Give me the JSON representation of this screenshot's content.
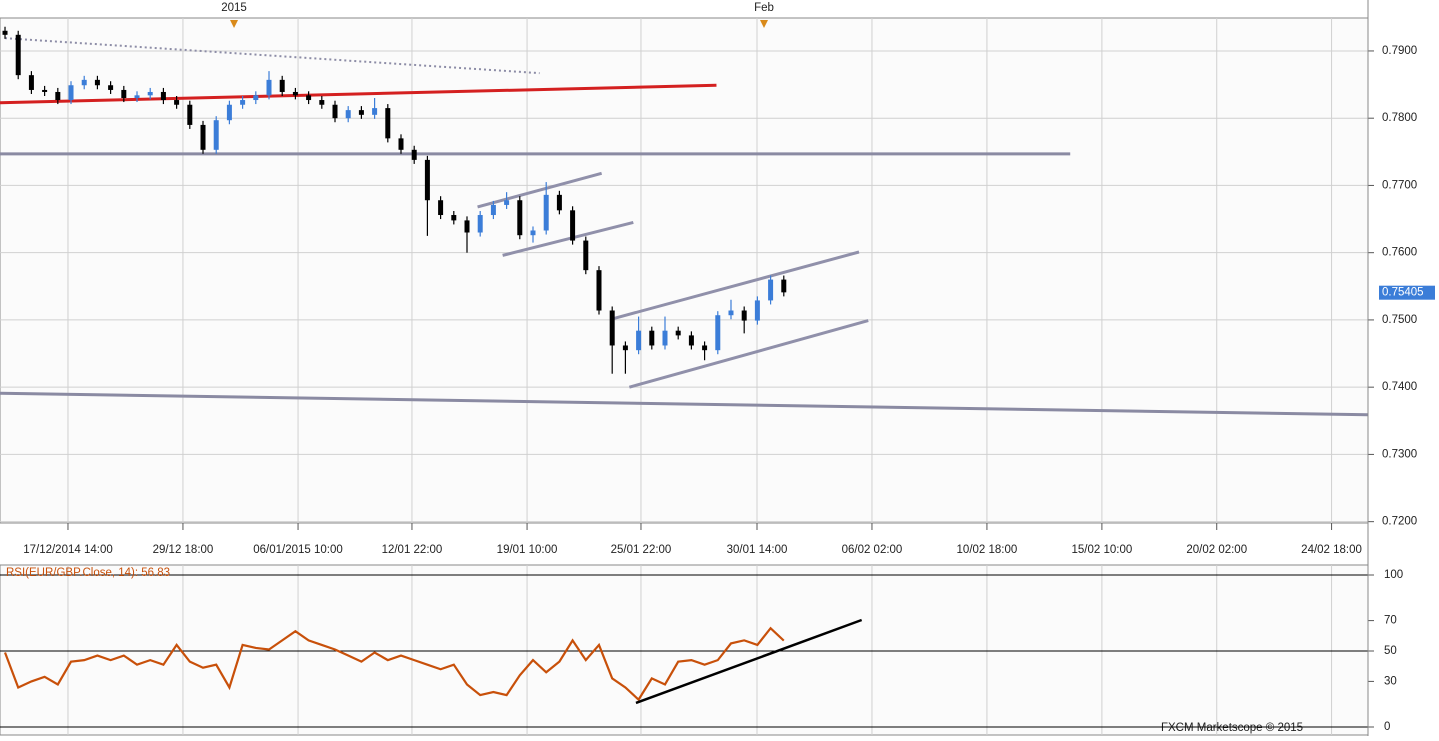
{
  "chart_data": [
    {
      "type": "candlestick",
      "markers": [
        {
          "x": 17.35,
          "label": "2015"
        },
        {
          "x": 57.5,
          "label": "Feb"
        }
      ],
      "open": [
        0.793,
        0.7924,
        0.7864,
        0.7842,
        0.7839,
        0.7827,
        0.7849,
        0.7857,
        0.7849,
        0.7842,
        0.783,
        0.7834,
        0.7839,
        0.7827,
        0.782,
        0.779,
        0.7753,
        0.7797,
        0.782,
        0.7827,
        0.7834,
        0.7857,
        0.7839,
        0.7834,
        0.7827,
        0.782,
        0.78,
        0.7812,
        0.7805,
        0.7815,
        0.777,
        0.7753,
        0.7738,
        0.7678,
        0.7656,
        0.7648,
        0.763,
        0.7656,
        0.7671,
        0.7678,
        0.7626,
        0.7633,
        0.7686,
        0.7663,
        0.7618,
        0.7574,
        0.7514,
        0.7462,
        0.7455,
        0.7484,
        0.7462,
        0.7484,
        0.7477,
        0.7462,
        0.7455,
        0.7507,
        0.7514,
        0.7499,
        0.7529,
        0.756
      ],
      "high": [
        0.7936,
        0.793,
        0.787,
        0.7848,
        0.7845,
        0.7855,
        0.7863,
        0.7863,
        0.7855,
        0.7848,
        0.784,
        0.7845,
        0.7845,
        0.7833,
        0.7826,
        0.7796,
        0.7803,
        0.7826,
        0.7833,
        0.784,
        0.787,
        0.7863,
        0.7845,
        0.784,
        0.7833,
        0.7826,
        0.7818,
        0.7818,
        0.783,
        0.7821,
        0.7776,
        0.7759,
        0.7744,
        0.7684,
        0.7662,
        0.7654,
        0.7662,
        0.7677,
        0.769,
        0.7684,
        0.7639,
        0.7705,
        0.7692,
        0.7669,
        0.7624,
        0.758,
        0.752,
        0.7468,
        0.7505,
        0.749,
        0.7505,
        0.749,
        0.7483,
        0.7468,
        0.7513,
        0.753,
        0.752,
        0.7535,
        0.7566,
        0.7566
      ],
      "low": [
        0.7918,
        0.7858,
        0.7836,
        0.7833,
        0.7821,
        0.7821,
        0.7843,
        0.7843,
        0.7836,
        0.7824,
        0.7824,
        0.7828,
        0.7821,
        0.7814,
        0.7784,
        0.7747,
        0.7747,
        0.7791,
        0.7814,
        0.7821,
        0.7828,
        0.7833,
        0.7828,
        0.7821,
        0.7814,
        0.7794,
        0.7794,
        0.7799,
        0.7799,
        0.7764,
        0.7747,
        0.7732,
        0.7625,
        0.765,
        0.7642,
        0.76,
        0.7624,
        0.765,
        0.7665,
        0.762,
        0.7615,
        0.7627,
        0.7657,
        0.7612,
        0.7568,
        0.7508,
        0.742,
        0.742,
        0.7449,
        0.7456,
        0.7456,
        0.7471,
        0.7456,
        0.744,
        0.7449,
        0.7501,
        0.748,
        0.7493,
        0.7523,
        0.7535
      ],
      "close": [
        0.7924,
        0.7864,
        0.7842,
        0.7839,
        0.7827,
        0.7849,
        0.7857,
        0.7849,
        0.7842,
        0.783,
        0.7834,
        0.7839,
        0.7827,
        0.782,
        0.779,
        0.7753,
        0.7797,
        0.782,
        0.7827,
        0.7834,
        0.7857,
        0.7839,
        0.7834,
        0.7827,
        0.782,
        0.78,
        0.7812,
        0.7805,
        0.7815,
        0.777,
        0.7753,
        0.7738,
        0.7678,
        0.7656,
        0.7648,
        0.763,
        0.7656,
        0.7671,
        0.7678,
        0.7626,
        0.7633,
        0.7686,
        0.7663,
        0.7618,
        0.7574,
        0.7514,
        0.7462,
        0.7455,
        0.7484,
        0.7462,
        0.7484,
        0.7477,
        0.7462,
        0.7455,
        0.7507,
        0.7514,
        0.7499,
        0.7529,
        0.756,
        0.7541
      ],
      "up_color": "#3b7dd8",
      "down_color": "#000000",
      "xlim": [
        -0.38,
        103.26
      ],
      "xticks": [
        {
          "value": 4.77,
          "label": "17/12/2014 14:00"
        },
        {
          "value": 13.48,
          "label": "29/12 18:00"
        },
        {
          "value": 22.2,
          "label": "06/01/2015 10:00"
        },
        {
          "value": 30.83,
          "label": "12/01 22:00"
        },
        {
          "value": 39.55,
          "label": "19/01 10:00"
        },
        {
          "value": 48.18,
          "label": "25/01 22:00"
        },
        {
          "value": 56.97,
          "label": "30/01 14:00"
        },
        {
          "value": 65.68,
          "label": "06/02 02:00"
        },
        {
          "value": 74.39,
          "label": "10/02 18:00"
        },
        {
          "value": 83.1,
          "label": "15/02 10:00"
        },
        {
          "value": 91.8,
          "label": "20/02 02:00"
        },
        {
          "value": 100.5,
          "label": "24/02 18:00"
        }
      ],
      "ylim": [
        0.7198,
        0.7949
      ],
      "yticks": [
        {
          "value": 0.72,
          "label": "0.7200"
        },
        {
          "value": 0.73,
          "label": "0.7300"
        },
        {
          "value": 0.74,
          "label": "0.7400"
        },
        {
          "value": 0.75,
          "label": "0.7500"
        },
        {
          "value": 0.76,
          "label": "0.7600"
        },
        {
          "value": 0.77,
          "label": "0.7700"
        },
        {
          "value": 0.78,
          "label": "0.7800"
        },
        {
          "value": 0.79,
          "label": "0.7900"
        }
      ],
      "grid": true,
      "last_price": 0.75405,
      "trendlines": [
        {
          "x": [
            0,
            40.5
          ],
          "y": [
            0.7919,
            0.7867
          ],
          "color": "#8c8ca6",
          "style": "dotted"
        },
        {
          "x": [
            -0.38,
            53.9
          ],
          "y": [
            0.7823,
            0.7849
          ],
          "color": "#d42020",
          "style": "solid"
        },
        {
          "x": [
            -0.38,
            80.7
          ],
          "y": [
            0.7747,
            0.7747
          ],
          "color": "#8a8aa2",
          "style": "solid"
        },
        {
          "x": [
            35.8,
            45.2
          ],
          "y": [
            0.7668,
            0.7718
          ],
          "color": "#9090aa",
          "style": "solid"
        },
        {
          "x": [
            37.7,
            47.6
          ],
          "y": [
            0.7596,
            0.7645
          ],
          "color": "#9090aa",
          "style": "solid"
        },
        {
          "x": [
            46.1,
            64.7
          ],
          "y": [
            0.7502,
            0.7601
          ],
          "color": "#9090aa",
          "style": "solid"
        },
        {
          "x": [
            47.3,
            65.4
          ],
          "y": [
            0.74,
            0.7499
          ],
          "color": "#9090aa",
          "style": "solid"
        },
        {
          "x": [
            -0.38,
            103.26
          ],
          "y": [
            0.7391,
            0.7359
          ],
          "color": "#8a8aa2",
          "style": "solid"
        }
      ]
    },
    {
      "type": "line",
      "title": "RSI(EUR/GBP.Close, 14): 56.83",
      "values": [
        49,
        26,
        30,
        33,
        28,
        43,
        44,
        47,
        44,
        47,
        41,
        44,
        41,
        54,
        43,
        39,
        41,
        26,
        54,
        52,
        51,
        57,
        63,
        57,
        54,
        51,
        47,
        43,
        49,
        44,
        47,
        44,
        41,
        38,
        41,
        28,
        21,
        23,
        21,
        34,
        44,
        36,
        43,
        57,
        44,
        54,
        32,
        26,
        18,
        32,
        28,
        43,
        44,
        41,
        44,
        55,
        57,
        54,
        65,
        56.83
      ],
      "color": "#c8500a",
      "xlim": [
        -0.38,
        103.26
      ],
      "ylim": [
        0,
        100
      ],
      "yticks": [
        0,
        30,
        50,
        70,
        100
      ],
      "hlines": [
        0,
        50,
        100
      ],
      "trendlines": [
        {
          "x": [
            47.8,
            64.9
          ],
          "y": [
            15.8,
            70.4
          ],
          "color": "#000000",
          "style": "solid"
        }
      ]
    }
  ],
  "footer": "FXCM Marketscope © 2015"
}
